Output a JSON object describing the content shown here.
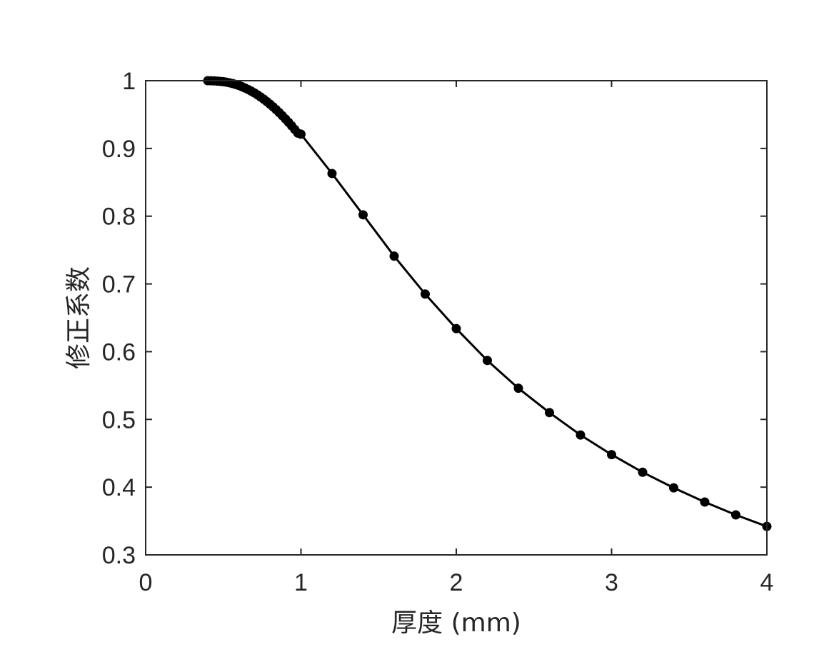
{
  "chart_data": {
    "type": "line",
    "title": "",
    "xlabel": "厚度 (mm)",
    "ylabel": "修正系数",
    "xlim": [
      0,
      4
    ],
    "ylim": [
      0.3,
      1.0
    ],
    "xticks": [
      0,
      1,
      2,
      3,
      4
    ],
    "xtick_labels": [
      "0",
      "1",
      "2",
      "3",
      "4"
    ],
    "yticks": [
      0.3,
      0.4,
      0.5,
      0.6,
      0.7,
      0.8,
      0.9,
      1.0
    ],
    "ytick_labels": [
      "0.3",
      "0.4",
      "0.5",
      "0.6",
      "0.7",
      "0.8",
      "0.9",
      "1"
    ],
    "grid": false,
    "legend": "none",
    "line_color": "#000000",
    "marker": "filled-circle",
    "series": [
      {
        "x": [
          0.4,
          0.42,
          0.44,
          0.46,
          0.48,
          0.5,
          0.52,
          0.54,
          0.56,
          0.58,
          0.6,
          0.62,
          0.64,
          0.66,
          0.68,
          0.7,
          0.72,
          0.74,
          0.76,
          0.78,
          0.8,
          0.82,
          0.84,
          0.86,
          0.88,
          0.9,
          0.92,
          0.94,
          0.96,
          0.98,
          1.0,
          1.2,
          1.4,
          1.6,
          1.8,
          2.0,
          2.2,
          2.4,
          2.6,
          2.8,
          3.0,
          3.2,
          3.4,
          3.6,
          3.8,
          4.0
        ],
        "y": [
          1.0,
          0.9999,
          0.9997,
          0.9994,
          0.999,
          0.9985,
          0.9978,
          0.9969,
          0.9958,
          0.9945,
          0.993,
          0.9912,
          0.9892,
          0.987,
          0.9846,
          0.982,
          0.9791,
          0.976,
          0.9727,
          0.9692,
          0.9655,
          0.9615,
          0.9573,
          0.9529,
          0.9483,
          0.9436,
          0.9386,
          0.9334,
          0.9281,
          0.9226,
          0.921,
          0.863,
          0.802,
          0.741,
          0.685,
          0.634,
          0.587,
          0.546,
          0.51,
          0.477,
          0.448,
          0.422,
          0.399,
          0.378,
          0.359,
          0.342
        ]
      }
    ]
  }
}
